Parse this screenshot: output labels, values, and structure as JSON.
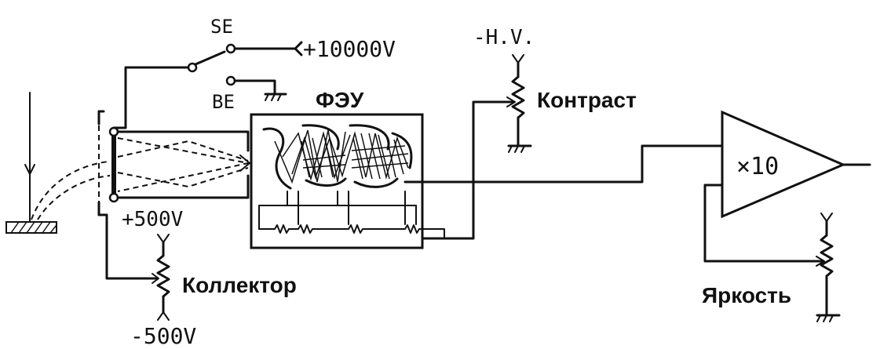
{
  "labels": {
    "se": "SE",
    "be": "BE",
    "plus_10000v": "+10000V",
    "plus_500v": "+500V",
    "minus_500v": "-500V",
    "hv": "-H.V.",
    "pmt": "ФЭУ",
    "contrast": "Контраст",
    "collector": "Коллектор",
    "amplifier_gain": "×10",
    "brightness": "Яркость"
  }
}
